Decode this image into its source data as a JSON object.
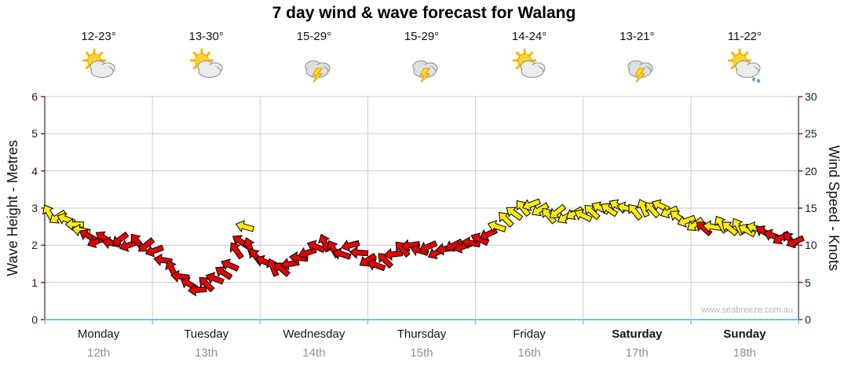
{
  "watermark": "www.seabreeze.com.au",
  "colors": {
    "gridline": "#CCCCCC",
    "axis_line": "#000000",
    "baseline": "#6EC9DC",
    "tick": "#DD0000",
    "date_text": "#909090"
  },
  "days": [
    {
      "name": "Monday",
      "date": "12th",
      "temp": "12-23°",
      "icon": "partly-cloudy",
      "bold": false
    },
    {
      "name": "Tuesday",
      "date": "13th",
      "temp": "13-30°",
      "icon": "partly-cloudy",
      "bold": false
    },
    {
      "name": "Wednesday",
      "date": "14th",
      "temp": "15-29°",
      "icon": "thunderstorm",
      "bold": false
    },
    {
      "name": "Thursday",
      "date": "15th",
      "temp": "15-29°",
      "icon": "thunderstorm",
      "bold": false
    },
    {
      "name": "Friday",
      "date": "16th",
      "temp": "14-24°",
      "icon": "partly-cloudy",
      "bold": false
    },
    {
      "name": "Saturday",
      "date": "17th",
      "temp": "13-21°",
      "icon": "thunderstorm",
      "bold": true
    },
    {
      "name": "Sunday",
      "date": "18th",
      "temp": "11-22°",
      "icon": "partly-cloudy-rain",
      "bold": true
    }
  ],
  "chart_data": {
    "type": "scatter",
    "subtype": "wind-direction-arrow-ribbon",
    "title": "7 day wind & wave forecast for Walang",
    "x_axis": {
      "categories": [
        "Monday 12th",
        "Tuesday 13th",
        "Wednesday 14th",
        "Thursday 15th",
        "Friday 16th",
        "Saturday 17th",
        "Sunday 18th"
      ],
      "range_days": [
        0,
        7
      ]
    },
    "y_axis_left": {
      "label": "Wave Height - Metres",
      "range": [
        0,
        6
      ],
      "ticks": [
        0,
        1,
        2,
        3,
        4,
        5,
        6
      ]
    },
    "y_axis_right": {
      "label": "Wind Speed - Knots",
      "range": [
        0,
        30
      ],
      "ticks": [
        0,
        5,
        10,
        15,
        20,
        25,
        30
      ]
    },
    "grid": true,
    "legend": "none",
    "point_colors": {
      "Y": "#FFEE00",
      "R": "#E60000"
    },
    "series": [
      {
        "name": "Wind speed and direction",
        "unit": "knots",
        "x_unit": "day-position (0-7)",
        "points": [
          [
            0.04,
            14.3,
            "Y"
          ],
          [
            0.12,
            13.8,
            "Y"
          ],
          [
            0.2,
            13.5,
            "Y"
          ],
          [
            0.28,
            12.8,
            "Y"
          ],
          [
            0.34,
            12.0,
            "Y"
          ],
          [
            0.4,
            11.3,
            "R"
          ],
          [
            0.48,
            10.5,
            "R"
          ],
          [
            0.55,
            11.0,
            "R"
          ],
          [
            0.62,
            10.3,
            "R"
          ],
          [
            0.7,
            10.8,
            "R"
          ],
          [
            0.78,
            10.0,
            "R"
          ],
          [
            0.86,
            10.5,
            "R"
          ],
          [
            0.94,
            10.0,
            "R"
          ],
          [
            1.02,
            9.3,
            "R"
          ],
          [
            1.1,
            8.0,
            "R"
          ],
          [
            1.18,
            6.8,
            "R"
          ],
          [
            1.26,
            5.8,
            "R"
          ],
          [
            1.34,
            4.8,
            "R"
          ],
          [
            1.42,
            4.0,
            "R"
          ],
          [
            1.5,
            4.8,
            "R"
          ],
          [
            1.58,
            5.5,
            "R"
          ],
          [
            1.66,
            6.3,
            "R"
          ],
          [
            1.72,
            7.3,
            "R"
          ],
          [
            1.78,
            9.3,
            "R"
          ],
          [
            1.82,
            10.5,
            "R"
          ],
          [
            1.86,
            12.5,
            "Y"
          ],
          [
            1.9,
            9.8,
            "R"
          ],
          [
            1.96,
            8.5,
            "R"
          ],
          [
            2.04,
            7.8,
            "R"
          ],
          [
            2.12,
            7.0,
            "R"
          ],
          [
            2.2,
            6.8,
            "R"
          ],
          [
            2.28,
            7.5,
            "R"
          ],
          [
            2.36,
            8.3,
            "R"
          ],
          [
            2.44,
            9.0,
            "R"
          ],
          [
            2.52,
            9.8,
            "R"
          ],
          [
            2.6,
            10.3,
            "R"
          ],
          [
            2.68,
            9.5,
            "R"
          ],
          [
            2.76,
            8.8,
            "R"
          ],
          [
            2.84,
            10.0,
            "R"
          ],
          [
            2.92,
            9.0,
            "R"
          ],
          [
            3.0,
            8.0,
            "R"
          ],
          [
            3.08,
            7.3,
            "R"
          ],
          [
            3.16,
            8.0,
            "R"
          ],
          [
            3.24,
            8.8,
            "R"
          ],
          [
            3.32,
            9.5,
            "R"
          ],
          [
            3.4,
            10.0,
            "R"
          ],
          [
            3.48,
            9.3,
            "R"
          ],
          [
            3.56,
            9.8,
            "R"
          ],
          [
            3.64,
            9.0,
            "R"
          ],
          [
            3.72,
            9.5,
            "R"
          ],
          [
            3.8,
            10.0,
            "R"
          ],
          [
            3.88,
            9.8,
            "R"
          ],
          [
            3.96,
            10.3,
            "R"
          ],
          [
            4.04,
            10.8,
            "R"
          ],
          [
            4.12,
            11.5,
            "R"
          ],
          [
            4.2,
            12.5,
            "Y"
          ],
          [
            4.28,
            13.5,
            "Y"
          ],
          [
            4.36,
            14.3,
            "Y"
          ],
          [
            4.44,
            15.0,
            "Y"
          ],
          [
            4.52,
            15.5,
            "Y"
          ],
          [
            4.6,
            14.8,
            "Y"
          ],
          [
            4.68,
            14.0,
            "Y"
          ],
          [
            4.76,
            14.5,
            "Y"
          ],
          [
            4.84,
            13.8,
            "Y"
          ],
          [
            4.92,
            14.3,
            "Y"
          ],
          [
            5.0,
            14.0,
            "Y"
          ],
          [
            5.08,
            14.5,
            "Y"
          ],
          [
            5.16,
            15.0,
            "Y"
          ],
          [
            5.24,
            14.8,
            "Y"
          ],
          [
            5.32,
            15.3,
            "Y"
          ],
          [
            5.4,
            15.0,
            "Y"
          ],
          [
            5.48,
            14.5,
            "Y"
          ],
          [
            5.56,
            15.0,
            "Y"
          ],
          [
            5.64,
            14.8,
            "Y"
          ],
          [
            5.72,
            15.3,
            "Y"
          ],
          [
            5.8,
            14.5,
            "Y"
          ],
          [
            5.88,
            13.8,
            "Y"
          ],
          [
            5.96,
            13.3,
            "Y"
          ],
          [
            6.04,
            12.8,
            "Y"
          ],
          [
            6.12,
            12.3,
            "R"
          ],
          [
            6.2,
            12.5,
            "Y"
          ],
          [
            6.28,
            12.8,
            "Y"
          ],
          [
            6.36,
            12.3,
            "Y"
          ],
          [
            6.44,
            12.5,
            "Y"
          ],
          [
            6.52,
            12.0,
            "Y"
          ],
          [
            6.6,
            12.3,
            "Y"
          ],
          [
            6.68,
            11.8,
            "R"
          ],
          [
            6.76,
            11.3,
            "R"
          ],
          [
            6.84,
            11.0,
            "R"
          ],
          [
            6.92,
            10.8,
            "R"
          ],
          [
            6.97,
            10.5,
            "R"
          ]
        ]
      }
    ]
  }
}
